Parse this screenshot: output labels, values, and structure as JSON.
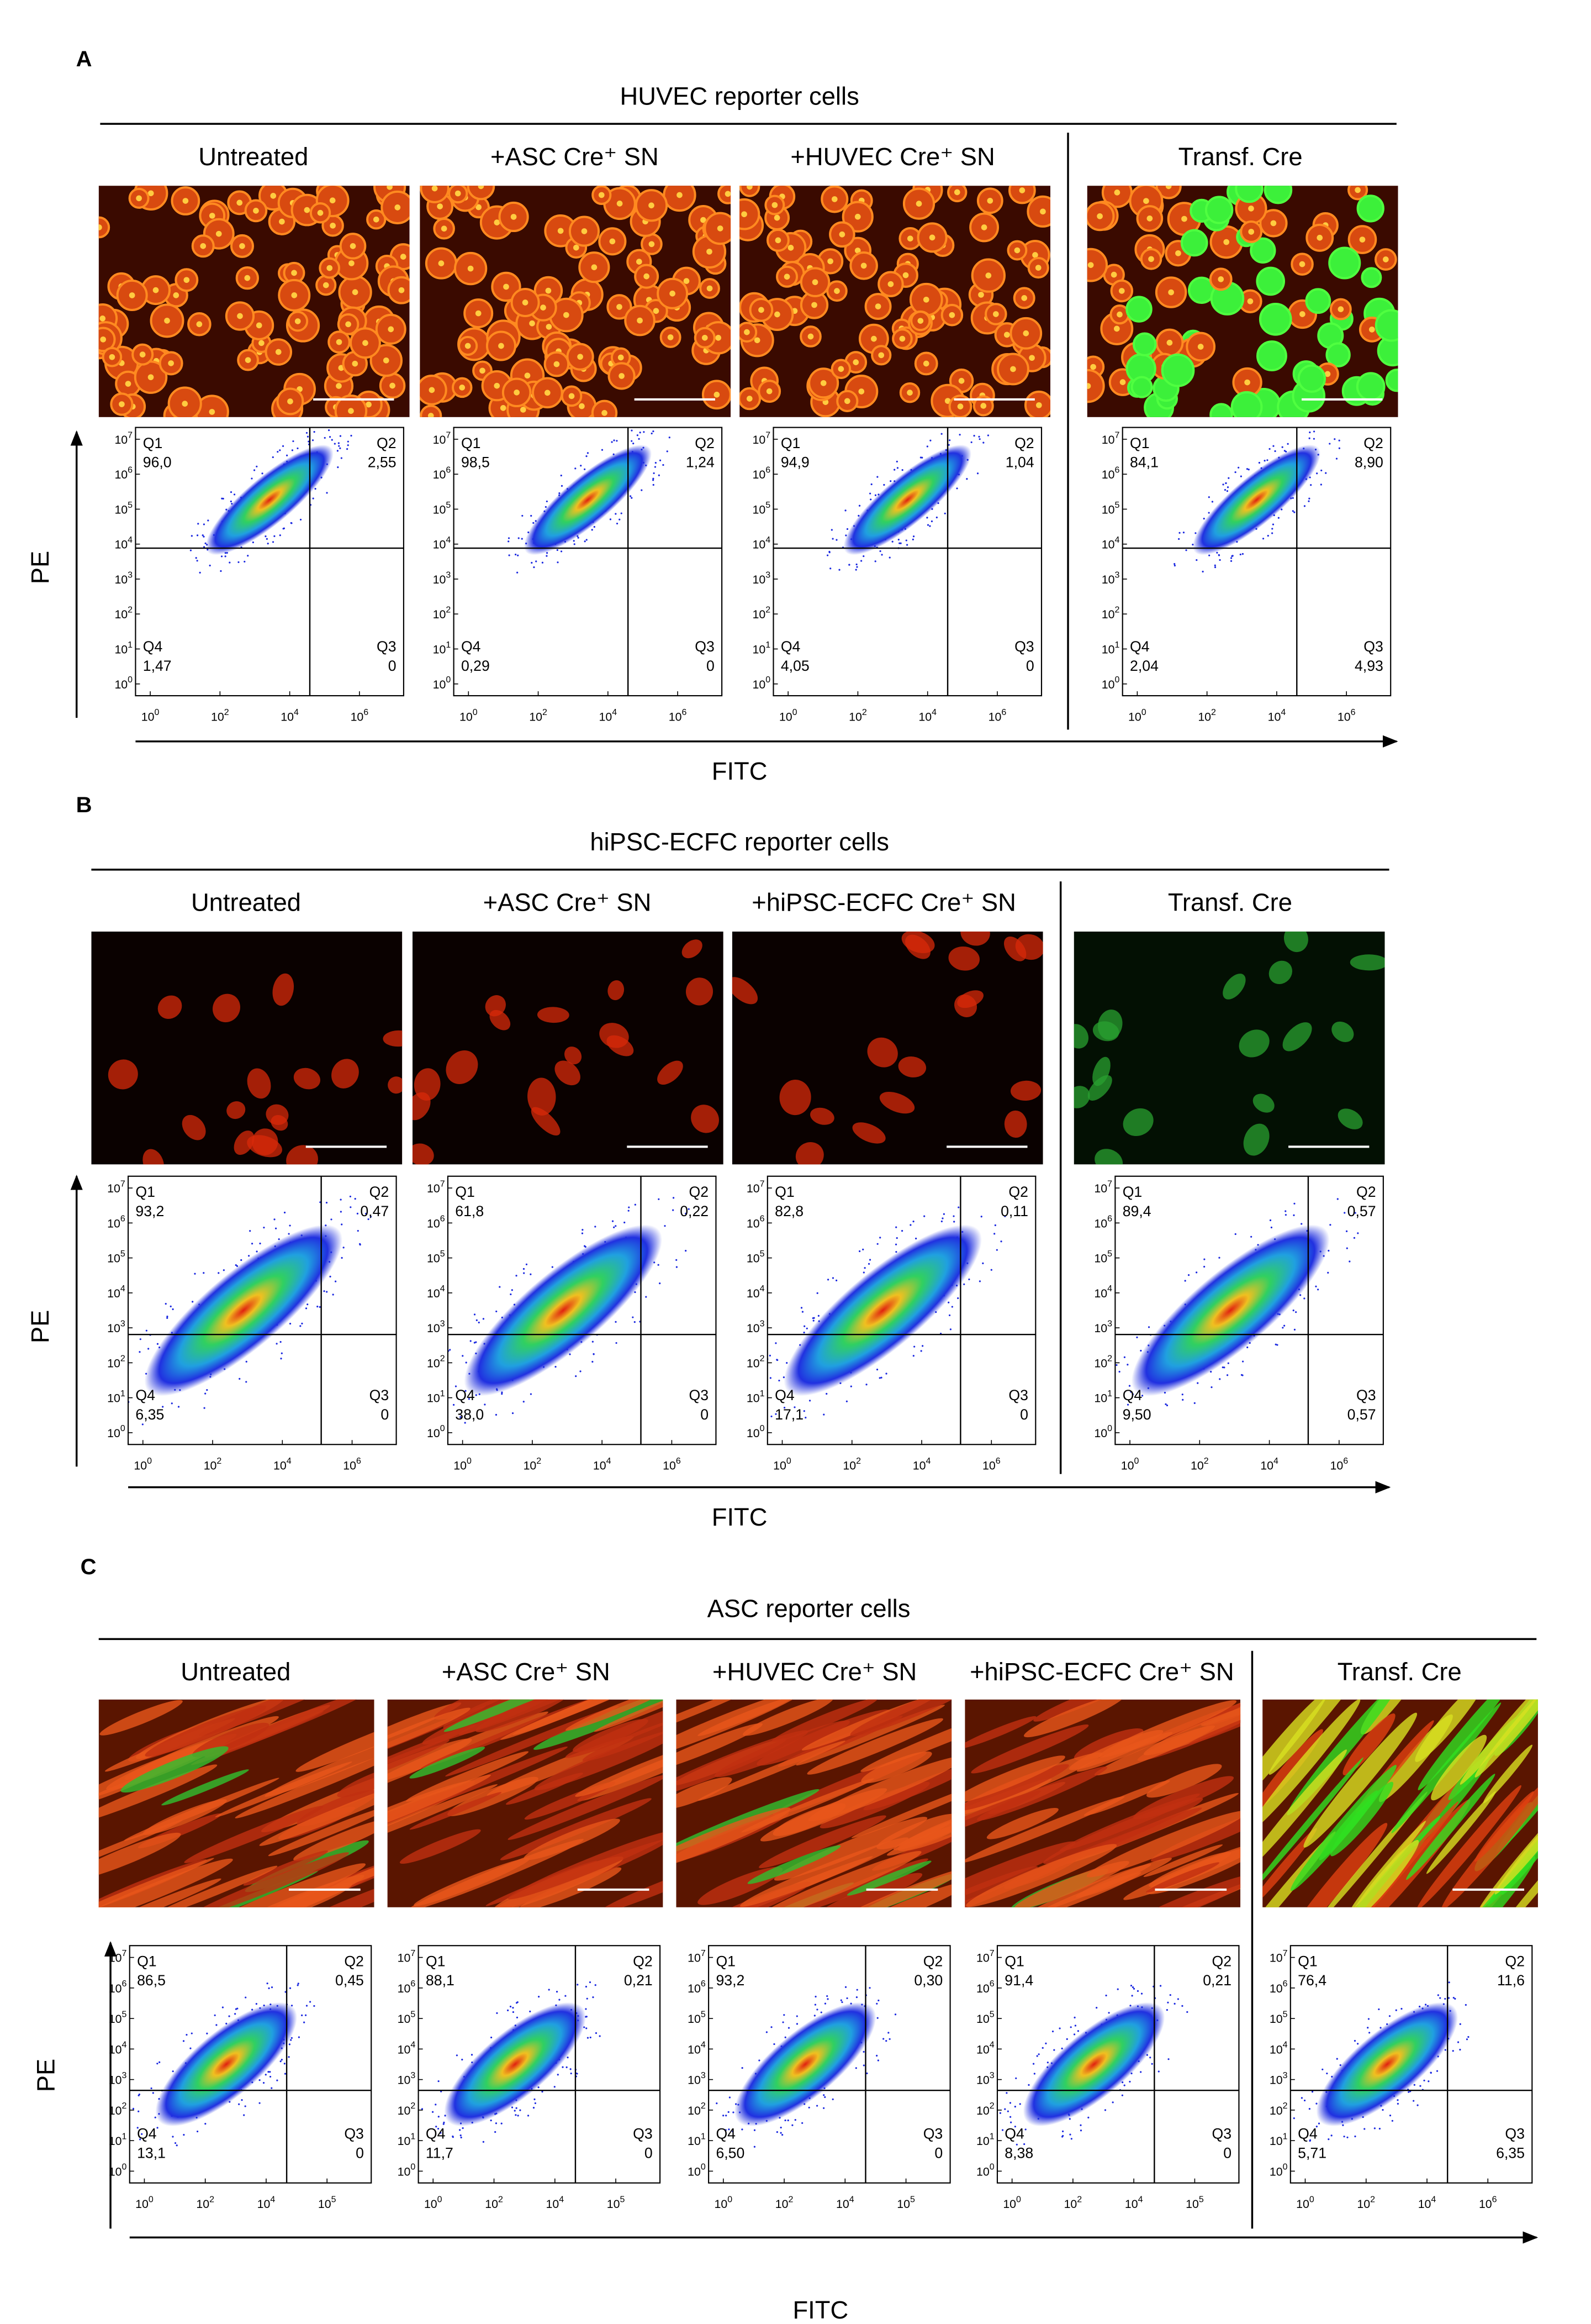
{
  "quadrant_names": [
    "Q1",
    "Q2",
    "Q3",
    "Q4"
  ],
  "tick_base": "10",
  "y_tick_exponents": [
    "0",
    "1",
    "2",
    "3",
    "4",
    "5",
    "6",
    "7"
  ],
  "panels": [
    {
      "label": "A",
      "title": "HUVEC reporter cells",
      "y_axis_label": "PE",
      "x_axis_label": "FITC",
      "conditions": [
        {
          "label": "Untreated",
          "quadrants": [
            "96,0",
            "2,55",
            "0",
            "1,47"
          ],
          "x_tick_exponents": [
            "0",
            "2",
            "4",
            "6"
          ]
        },
        {
          "label": "+ASC Cre⁺ SN",
          "quadrants": [
            "98,5",
            "1,24",
            "0",
            "0,29"
          ],
          "x_tick_exponents": [
            "0",
            "2",
            "4",
            "6"
          ]
        },
        {
          "label": "+HUVEC Cre⁺ SN",
          "quadrants": [
            "94,9",
            "1,04",
            "0",
            "4,05"
          ],
          "x_tick_exponents": [
            "0",
            "2",
            "4",
            "6"
          ]
        },
        {
          "label": "Transf. Cre",
          "quadrants": [
            "84,1",
            "8,90",
            "4,93",
            "2,04"
          ],
          "x_tick_exponents": [
            "0",
            "2",
            "4",
            "6"
          ]
        }
      ]
    },
    {
      "label": "B",
      "title": "hiPSC-ECFC reporter cells",
      "y_axis_label": "PE",
      "x_axis_label": "FITC",
      "conditions": [
        {
          "label": "Untreated",
          "quadrants": [
            "93,2",
            "0,47",
            "0",
            "6,35"
          ],
          "x_tick_exponents": [
            "0",
            "2",
            "4",
            "6"
          ]
        },
        {
          "label": "+ASC Cre⁺ SN",
          "quadrants": [
            "61,8",
            "0,22",
            "0",
            "38,0"
          ],
          "x_tick_exponents": [
            "0",
            "2",
            "4",
            "6"
          ]
        },
        {
          "label": "+hiPSC-ECFC Cre⁺ SN",
          "quadrants": [
            "82,8",
            "0,11",
            "0",
            "17,1"
          ],
          "x_tick_exponents": [
            "0",
            "2",
            "4",
            "6"
          ]
        },
        {
          "label": "Transf. Cre",
          "quadrants": [
            "89,4",
            "0,57",
            "0,57",
            "9,50"
          ],
          "x_tick_exponents": [
            "0",
            "2",
            "4",
            "6"
          ]
        }
      ]
    },
    {
      "label": "C",
      "title": "ASC reporter cells",
      "y_axis_label": "PE",
      "x_axis_label": "FITC",
      "conditions": [
        {
          "label": "Untreated",
          "quadrants": [
            "86,5",
            "0,45",
            "0",
            "13,1"
          ],
          "x_tick_exponents": [
            "0",
            "2",
            "4",
            "5"
          ]
        },
        {
          "label": "+ASC Cre⁺ SN",
          "quadrants": [
            "88,1",
            "0,21",
            "0",
            "11,7"
          ],
          "x_tick_exponents": [
            "0",
            "2",
            "4",
            "5"
          ]
        },
        {
          "label": "+HUVEC Cre⁺ SN",
          "quadrants": [
            "93,2",
            "0,30",
            "0",
            "6,50"
          ],
          "x_tick_exponents": [
            "0",
            "2",
            "4",
            "5"
          ]
        },
        {
          "label": "+hiPSC-ECFC Cre⁺ SN",
          "quadrants": [
            "91,4",
            "0,21",
            "0",
            "8,38"
          ],
          "x_tick_exponents": [
            "0",
            "2",
            "4",
            "5"
          ]
        },
        {
          "label": "Transf. Cre",
          "quadrants": [
            "76,4",
            "11,6",
            "6,35",
            "5,71"
          ],
          "x_tick_exponents": [
            "0",
            "2",
            "4",
            "6"
          ]
        }
      ]
    }
  ]
}
